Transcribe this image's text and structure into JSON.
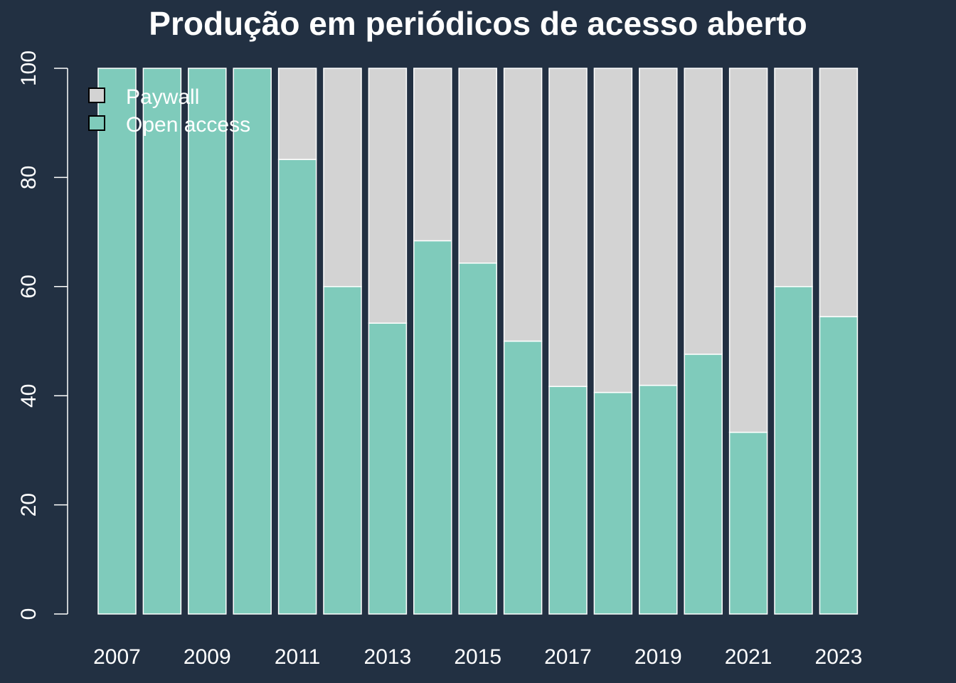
{
  "chart_data": {
    "type": "bar",
    "stacked": true,
    "title": "Produção em periódicos de acesso aberto",
    "xlabel": "",
    "ylabel": "",
    "ylim": [
      0,
      100
    ],
    "yticks": [
      0,
      20,
      40,
      60,
      80,
      100
    ],
    "categories": [
      "2007",
      "2008",
      "2009",
      "2010",
      "2011",
      "2012",
      "2013",
      "2014",
      "2015",
      "2016",
      "2017",
      "2018",
      "2019",
      "2020",
      "2021",
      "2022",
      "2023"
    ],
    "x_tick_labels": [
      "2007",
      "2009",
      "2011",
      "2013",
      "2015",
      "2017",
      "2019",
      "2021",
      "2023"
    ],
    "series": [
      {
        "name": "Open access",
        "color": "#7fcbbb",
        "values": [
          100,
          100,
          100,
          100,
          83.3,
          60,
          53.3,
          68.4,
          64.3,
          50,
          41.7,
          40.6,
          41.9,
          47.6,
          33.3,
          60,
          54.5
        ]
      },
      {
        "name": "Paywall",
        "color": "#d3d3d3",
        "values": [
          0,
          0,
          0,
          0,
          16.7,
          40,
          46.7,
          31.6,
          35.7,
          50,
          58.3,
          59.4,
          58.1,
          52.4,
          66.7,
          40,
          45.5
        ]
      }
    ],
    "legend": {
      "position": "top-left",
      "entries": [
        "Paywall",
        "Open access"
      ]
    },
    "grid": false
  },
  "colors": {
    "background": "#223042",
    "text": "#ffffff",
    "bar_border": "#ffffff",
    "legend_border": "#000000"
  }
}
